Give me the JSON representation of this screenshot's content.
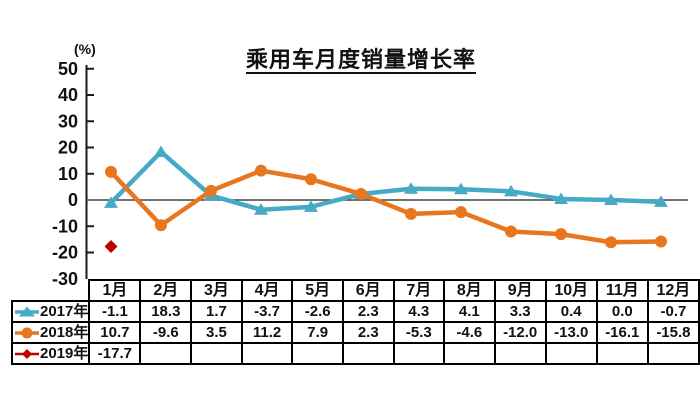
{
  "title": "乘用车月度销量增长率",
  "y_axis": {
    "unit": "(%)",
    "tick_labels": [
      "50",
      "40",
      "30",
      "20",
      "10",
      "0",
      "-10",
      "-20",
      "-30"
    ]
  },
  "chart_data": {
    "type": "line",
    "title": "乘用车月度销量增长率",
    "xlabel": "",
    "ylabel": "(%)",
    "ylim": [
      -30,
      50
    ],
    "ytick_step": 10,
    "grid": false,
    "legend_position": "left-column-of-table",
    "categories": [
      "1月",
      "2月",
      "3月",
      "4月",
      "5月",
      "6月",
      "7月",
      "8月",
      "9月",
      "10月",
      "11月",
      "12月"
    ],
    "series": [
      {
        "name": "2017年",
        "marker": "triangle",
        "color": "#46A9C6",
        "values": [
          -1.1,
          18.3,
          1.7,
          -3.7,
          -2.6,
          2.3,
          4.3,
          4.1,
          3.3,
          0.4,
          0.0,
          -0.7
        ]
      },
      {
        "name": "2018年",
        "marker": "circle",
        "color": "#E8761F",
        "values": [
          10.7,
          -9.6,
          3.5,
          11.2,
          7.9,
          2.3,
          -5.3,
          -4.6,
          -12.0,
          -13.0,
          -16.1,
          -15.8
        ]
      },
      {
        "name": "2019年",
        "marker": "diamond",
        "color": "#C00000",
        "values": [
          -17.7
        ]
      }
    ]
  },
  "colors": {
    "axis": "#1a1a1a",
    "zero_line": "#404040",
    "table_border": "#000000",
    "text": "#111111"
  }
}
